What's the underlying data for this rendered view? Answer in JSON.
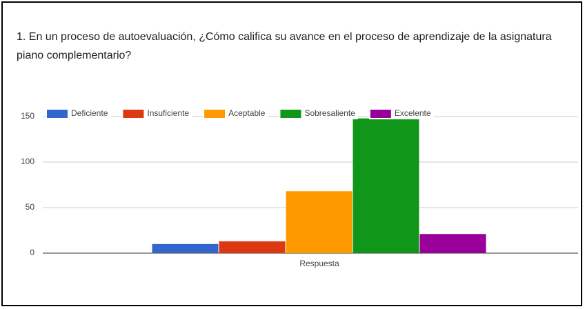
{
  "chart_data": {
    "type": "bar",
    "title": "1. En un proceso de autoevaluación, ¿Cómo califica su avance en el proceso de aprendizaje de la asignatura piano complementario?",
    "categories": [
      "Respuesta"
    ],
    "series": [
      {
        "name": "Deficiente",
        "color": "#3366cc",
        "values": [
          10
        ]
      },
      {
        "name": "Insuficiente",
        "color": "#dc3912",
        "values": [
          13
        ]
      },
      {
        "name": "Aceptable",
        "color": "#ff9900",
        "values": [
          68
        ]
      },
      {
        "name": "Sobresaliente",
        "color": "#109618",
        "values": [
          148
        ]
      },
      {
        "name": "Excelente",
        "color": "#990099",
        "values": [
          21
        ]
      }
    ],
    "ylim": [
      0,
      150
    ],
    "yticks": [
      0,
      50,
      100,
      150
    ],
    "grid": true,
    "legend": "top"
  }
}
